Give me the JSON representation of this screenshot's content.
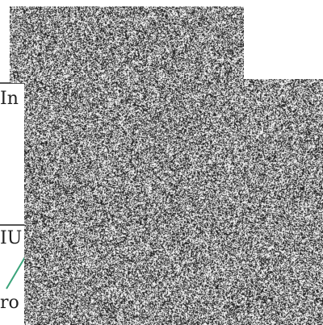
{
  "labels": {
    "fragment_top": "In",
    "fragment_middle": "IU",
    "fragment_bottom": "ro"
  },
  "colors": {
    "connector": "#3aa37a",
    "rule": "#555555",
    "noise_dark": "#1a1a1a",
    "noise_light": "#f2f2f2"
  }
}
